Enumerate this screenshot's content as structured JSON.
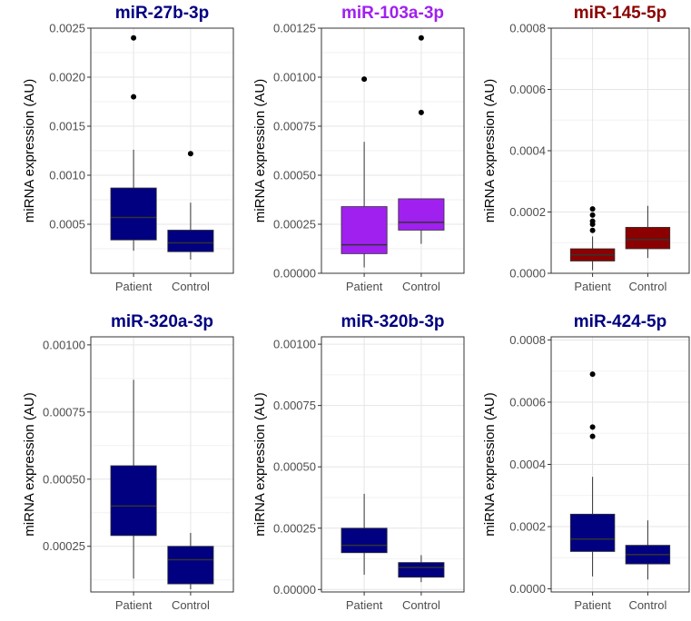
{
  "chart_data": [
    {
      "type": "boxplot",
      "title": "miR-27b-3p",
      "title_color": "#000080",
      "box_color": "#000080",
      "ylabel": "miRNA expression (AU)",
      "categories": [
        "Patient",
        "Control"
      ],
      "ylim": [
        0.0,
        0.0025
      ],
      "yticks": [
        0.0005,
        0.001,
        0.0015,
        0.002,
        0.0025
      ],
      "ytick_labels": [
        "0.0005",
        "0.0010",
        "0.0015",
        "0.0020",
        "0.0025"
      ],
      "boxes": [
        {
          "category": "Patient",
          "whisker_low": 0.00023,
          "q1": 0.00034,
          "median": 0.00057,
          "q3": 0.00087,
          "whisker_high": 0.00126,
          "outliers": [
            0.0018,
            0.0024
          ]
        },
        {
          "category": "Control",
          "whisker_low": 0.00014,
          "q1": 0.00022,
          "median": 0.00031,
          "q3": 0.00044,
          "whisker_high": 0.00072,
          "outliers": [
            0.00122
          ]
        }
      ]
    },
    {
      "type": "boxplot",
      "title": "miR-103a-3p",
      "title_color": "#a020f0",
      "box_color": "#a020f0",
      "ylabel": "miRNA expression (AU)",
      "categories": [
        "Patient",
        "Control"
      ],
      "ylim": [
        0.0,
        0.00125
      ],
      "yticks": [
        0.0,
        0.00025,
        0.0005,
        0.00075,
        0.001,
        0.00125
      ],
      "ytick_labels": [
        "0.00000",
        "0.00025",
        "0.00050",
        "0.00075",
        "0.00100",
        "0.00125"
      ],
      "boxes": [
        {
          "category": "Patient",
          "whisker_low": 3e-05,
          "q1": 0.0001,
          "median": 0.000145,
          "q3": 0.00034,
          "whisker_high": 0.00067,
          "outliers": [
            0.00099
          ]
        },
        {
          "category": "Control",
          "whisker_low": 0.00015,
          "q1": 0.00022,
          "median": 0.00026,
          "q3": 0.00038,
          "whisker_high": 0.00038,
          "outliers": [
            0.00082,
            0.0012
          ]
        }
      ]
    },
    {
      "type": "boxplot",
      "title": "miR-145-5p",
      "title_color": "#8b0000",
      "box_color": "#8b0000",
      "ylabel": "miRNA expression (AU)",
      "categories": [
        "Patient",
        "Control"
      ],
      "ylim": [
        0.0,
        0.0008
      ],
      "yticks": [
        0.0,
        0.0002,
        0.0004,
        0.0006,
        0.0008
      ],
      "ytick_labels": [
        "0.0000",
        "0.0002",
        "0.0004",
        "0.0006",
        "0.0008"
      ],
      "boxes": [
        {
          "category": "Patient",
          "whisker_low": 1e-05,
          "q1": 4e-05,
          "median": 6e-05,
          "q3": 8e-05,
          "whisker_high": 0.00012,
          "outliers": [
            0.00014,
            0.00016,
            0.00017,
            0.00019,
            0.00021
          ]
        },
        {
          "category": "Control",
          "whisker_low": 5e-05,
          "q1": 8e-05,
          "median": 0.00011,
          "q3": 0.00015,
          "whisker_high": 0.00022,
          "outliers": []
        }
      ]
    },
    {
      "type": "boxplot",
      "title": "miR-320a-3p",
      "title_color": "#000080",
      "box_color": "#000080",
      "ylabel": "miRNA expression (AU)",
      "categories": [
        "Patient",
        "Control"
      ],
      "ylim": [
        8e-05,
        0.00103
      ],
      "yticks": [
        0.00025,
        0.0005,
        0.00075,
        0.001
      ],
      "ytick_labels": [
        "0.00025",
        "0.00050",
        "0.00075",
        "0.00100"
      ],
      "boxes": [
        {
          "category": "Patient",
          "whisker_low": 0.00013,
          "q1": 0.00029,
          "median": 0.0004,
          "q3": 0.00055,
          "whisker_high": 0.00087,
          "outliers": []
        },
        {
          "category": "Control",
          "whisker_low": 9e-05,
          "q1": 0.00011,
          "median": 0.0002,
          "q3": 0.00025,
          "whisker_high": 0.0003,
          "outliers": []
        }
      ]
    },
    {
      "type": "boxplot",
      "title": "miR-320b-3p",
      "title_color": "#000080",
      "box_color": "#000080",
      "ylabel": "miRNA expression (AU)",
      "categories": [
        "Patient",
        "Control"
      ],
      "ylim": [
        -1e-05,
        0.00103
      ],
      "yticks": [
        0.0,
        0.00025,
        0.0005,
        0.00075,
        0.001
      ],
      "ytick_labels": [
        "0.00000",
        "0.00025",
        "0.00050",
        "0.00075",
        "0.00100"
      ],
      "boxes": [
        {
          "category": "Patient",
          "whisker_low": 6e-05,
          "q1": 0.00015,
          "median": 0.00018,
          "q3": 0.00025,
          "whisker_high": 0.00039,
          "outliers": []
        },
        {
          "category": "Control",
          "whisker_low": 3e-05,
          "q1": 5e-05,
          "median": 9e-05,
          "q3": 0.00011,
          "whisker_high": 0.00014,
          "outliers": []
        }
      ]
    },
    {
      "type": "boxplot",
      "title": "miR-424-5p",
      "title_color": "#000080",
      "box_color": "#000080",
      "ylabel": "miRNA expression (AU)",
      "categories": [
        "Patient",
        "Control"
      ],
      "ylim": [
        -1e-05,
        0.00081
      ],
      "yticks": [
        0.0,
        0.0002,
        0.0004,
        0.0006,
        0.0008
      ],
      "ytick_labels": [
        "0.0000",
        "0.0002",
        "0.0004",
        "0.0006",
        "0.0008"
      ],
      "boxes": [
        {
          "category": "Patient",
          "whisker_low": 4e-05,
          "q1": 0.00012,
          "median": 0.00016,
          "q3": 0.00024,
          "whisker_high": 0.00036,
          "outliers": [
            0.00049,
            0.00052,
            0.00069
          ]
        },
        {
          "category": "Control",
          "whisker_low": 3e-05,
          "q1": 8e-05,
          "median": 0.00011,
          "q3": 0.00014,
          "whisker_high": 0.00022,
          "outliers": []
        }
      ]
    }
  ]
}
